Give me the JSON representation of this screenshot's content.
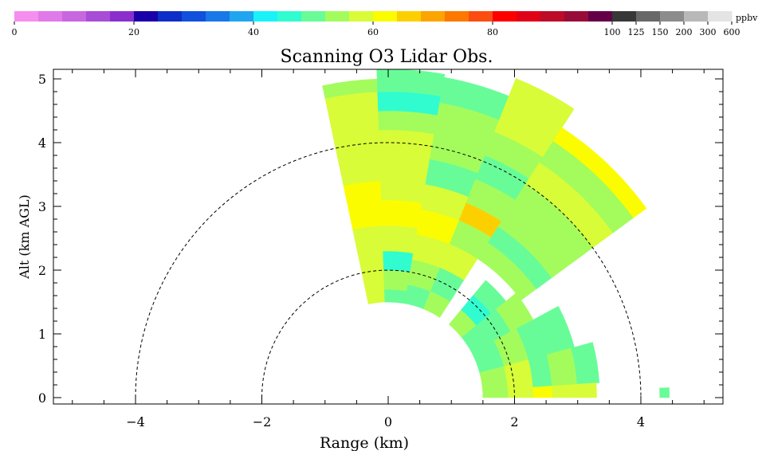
{
  "chart_data": {
    "type": "heatmap",
    "title": "Scanning O3 Lidar Obs.",
    "xlabel": "Range (km)",
    "ylabel": "Alt (km AGL)",
    "xlim": [
      -5.3,
      5.3
    ],
    "ylim": [
      -0.1,
      5.15
    ],
    "x_ticks": [
      -4,
      -2,
      0,
      2,
      4
    ],
    "y_ticks": [
      0,
      1,
      2,
      3,
      4,
      5
    ],
    "range_rings_km": [
      2,
      4
    ],
    "colorbar": {
      "unit": "ppbv",
      "colors": [
        "#f68ef0",
        "#e07ae8",
        "#c866e0",
        "#a94cd6",
        "#8a2fcc",
        "#1a00a8",
        "#0d2ec8",
        "#1050dc",
        "#1878e8",
        "#20a6f0",
        "#18f2f8",
        "#30fcd0",
        "#68fc98",
        "#a4fc5c",
        "#d8fc38",
        "#fcfc00",
        "#fcd000",
        "#fca400",
        "#fc7800",
        "#fc4c10",
        "#fc0000",
        "#e00018",
        "#bc0c28",
        "#980c38",
        "#640048",
        "#383838",
        "#686868",
        "#8c8c8c",
        "#b8b8b8",
        "#e4e4e4"
      ],
      "tick_labels": [
        {
          "label": "0",
          "index": 0
        },
        {
          "label": "20",
          "index": 5
        },
        {
          "label": "40",
          "index": 10
        },
        {
          "label": "60",
          "index": 15
        },
        {
          "label": "80",
          "index": 20
        },
        {
          "label": "100",
          "index": 25
        },
        {
          "label": "125",
          "index": 26
        },
        {
          "label": "150",
          "index": 27
        },
        {
          "label": "200",
          "index": 28
        },
        {
          "label": "300",
          "index": 29
        },
        {
          "label": "600",
          "index": 30
        }
      ]
    },
    "sectors": [
      {
        "az": [
          92,
          102
        ],
        "cells": [
          [
            1.5,
            1.9,
            "#d8fc38"
          ],
          [
            1.9,
            2.3,
            "#d8fc38"
          ],
          [
            2.3,
            2.7,
            "#d8fc38"
          ],
          [
            2.7,
            3.0,
            "#fcfc00"
          ],
          [
            3.0,
            3.4,
            "#fcfc00"
          ],
          [
            3.4,
            3.8,
            "#d8fc38"
          ],
          [
            3.8,
            4.1,
            "#d8fc38"
          ],
          [
            4.1,
            4.5,
            "#d8fc38"
          ],
          [
            4.5,
            4.8,
            "#d8fc38"
          ],
          [
            4.8,
            5.0,
            "#a4fc5c"
          ]
        ]
      },
      {
        "az": [
          80,
          92
        ],
        "cells": [
          [
            1.5,
            1.7,
            "#68fc98"
          ],
          [
            1.7,
            2.0,
            "#a4fc5c"
          ],
          [
            2.0,
            2.3,
            "#30fcd0"
          ],
          [
            2.3,
            2.7,
            "#d8fc38"
          ],
          [
            2.7,
            3.1,
            "#fcfc00"
          ],
          [
            3.1,
            3.5,
            "#d8fc38"
          ],
          [
            3.5,
            3.9,
            "#d8fc38"
          ],
          [
            3.9,
            4.2,
            "#d8fc38"
          ],
          [
            4.2,
            4.5,
            "#a4fc5c"
          ],
          [
            4.5,
            4.8,
            "#30fcd0"
          ],
          [
            4.8,
            5.15,
            "#68fc98"
          ]
        ]
      },
      {
        "az": [
          68,
          80
        ],
        "cells": [
          [
            1.5,
            1.8,
            "#68fc98"
          ],
          [
            1.8,
            2.2,
            "#a4fc5c"
          ],
          [
            2.2,
            2.6,
            "#d8fc38"
          ],
          [
            2.6,
            3.0,
            "#fcfc00"
          ],
          [
            3.0,
            3.4,
            "#d8fc38"
          ],
          [
            3.4,
            3.8,
            "#68fc98"
          ],
          [
            3.8,
            4.2,
            "#a4fc5c"
          ],
          [
            4.2,
            4.7,
            "#a4fc5c"
          ],
          [
            4.7,
            5.1,
            "#68fc98"
          ]
        ]
      },
      {
        "az": [
          57,
          68
        ],
        "cells": [
          [
            1.5,
            1.8,
            "#a4fc5c"
          ],
          [
            1.8,
            2.2,
            "#68fc98"
          ],
          [
            2.2,
            2.6,
            "#d8fc38"
          ],
          [
            2.6,
            3.0,
            "#a4fc5c"
          ],
          [
            3.0,
            3.3,
            "#fcd000"
          ],
          [
            3.3,
            3.7,
            "#a4fc5c"
          ],
          [
            3.7,
            4.1,
            "#68fc98"
          ],
          [
            4.1,
            4.5,
            "#a4fc5c"
          ],
          [
            4.5,
            5.0,
            "#d8fc38"
          ],
          [
            5.0,
            5.4,
            "#d8fc38"
          ]
        ]
      },
      {
        "az": [
          36,
          57
        ],
        "cells": [
          [
            2.6,
            2.9,
            "#a4fc5c"
          ],
          [
            2.9,
            3.2,
            "#68fc98"
          ],
          [
            3.2,
            3.6,
            "#a4fc5c"
          ],
          [
            3.6,
            4.0,
            "#a4fc5c"
          ],
          [
            4.0,
            4.4,
            "#d8fc38"
          ],
          [
            4.4,
            4.8,
            "#a4fc5c"
          ],
          [
            4.8,
            5.05,
            "#fcfc00"
          ]
        ]
      },
      {
        "az": [
          39,
          50
        ],
        "cells": [
          [
            1.5,
            1.8,
            "#a4fc5c"
          ],
          [
            1.8,
            2.1,
            "#30fcd0"
          ],
          [
            2.1,
            2.4,
            "#68fc98"
          ]
        ]
      },
      {
        "az": [
          28,
          39
        ],
        "cells": [
          [
            1.5,
            1.8,
            "#68fc98"
          ],
          [
            1.8,
            2.2,
            "#68fc98"
          ],
          [
            2.2,
            2.6,
            "#a4fc5c"
          ]
        ]
      },
      {
        "az": [
          15,
          28
        ],
        "cells": [
          [
            1.5,
            1.9,
            "#68fc98"
          ],
          [
            1.9,
            2.3,
            "#a4fc5c"
          ],
          [
            2.3,
            2.7,
            "#68fc98"
          ],
          [
            2.7,
            3.05,
            "#68fc98"
          ]
        ]
      },
      {
        "az": [
          4,
          15
        ],
        "cells": [
          [
            1.5,
            1.9,
            "#a4fc5c"
          ],
          [
            1.9,
            2.3,
            "#d8fc38"
          ],
          [
            2.3,
            2.6,
            "#68fc98"
          ],
          [
            2.6,
            3.0,
            "#a4fc5c"
          ],
          [
            3.0,
            3.35,
            "#68fc98"
          ]
        ]
      },
      {
        "az": [
          0,
          4
        ],
        "cells": [
          [
            1.5,
            1.9,
            "#a4fc5c"
          ],
          [
            1.9,
            2.3,
            "#d8fc38"
          ],
          [
            2.3,
            2.6,
            "#fcfc00"
          ],
          [
            2.6,
            3.0,
            "#d8fc38"
          ],
          [
            3.0,
            3.3,
            "#d8fc38"
          ]
        ]
      },
      {
        "az": [
          0,
          2
        ],
        "cells": [
          [
            4.3,
            4.45,
            "#68fc98"
          ]
        ]
      }
    ]
  }
}
